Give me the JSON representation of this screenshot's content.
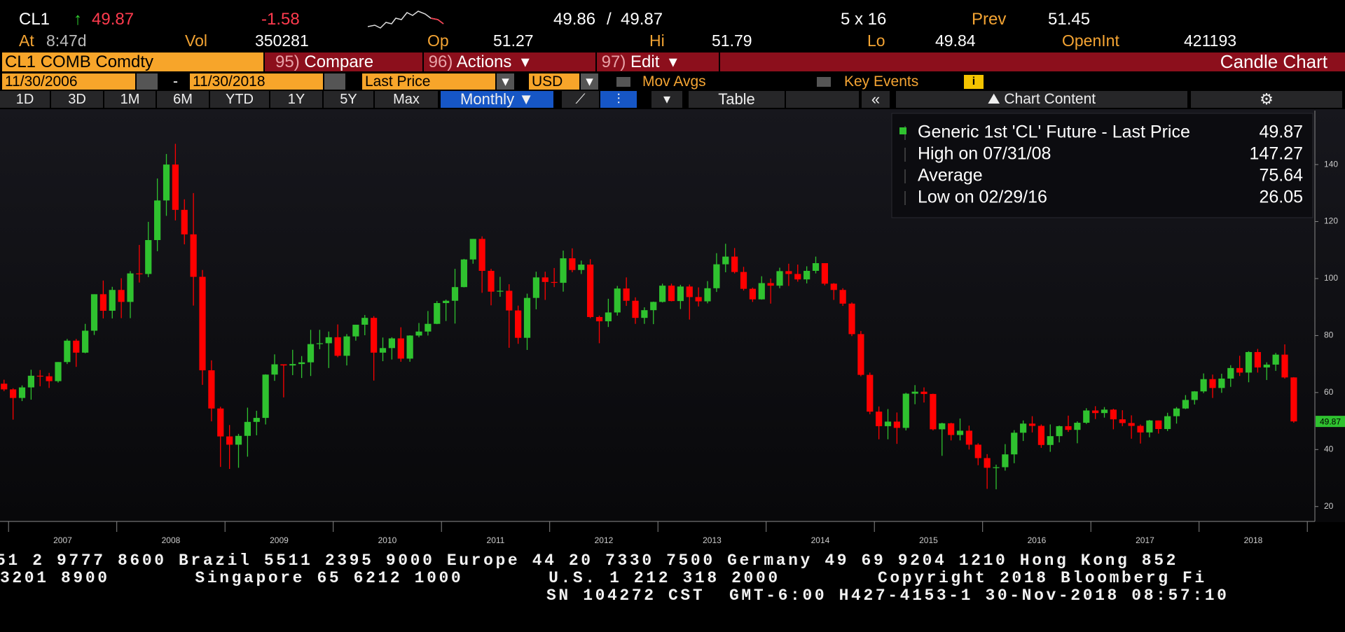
{
  "header": {
    "ticker": "CL1",
    "arrow": "↑",
    "last": "49.87",
    "change": "-1.58",
    "bid": "49.86",
    "sep": "/",
    "ask": "49.87",
    "size": "5 x 16",
    "prev_label": "Prev",
    "prev": "51.45",
    "at_label": "At",
    "time": "8:47d",
    "vol_label": "Vol",
    "vol": "350281",
    "open_label": "Op",
    "open": "51.27",
    "hi_label": "Hi",
    "hi": "51.79",
    "lo_label": "Lo",
    "lo": "49.84",
    "oi_label": "OpenInt",
    "oi": "421193"
  },
  "toolbar": {
    "security": "CL1 COMB Comdty",
    "menus": [
      {
        "num": "95)",
        "label": "Compare"
      },
      {
        "num": "96)",
        "label": "Actions"
      },
      {
        "num": "97)",
        "label": "Edit"
      }
    ],
    "view": "Candle Chart",
    "start_date": "11/30/2006",
    "dash": "-",
    "end_date": "11/30/2018",
    "field": "Last Price",
    "currency": "USD",
    "mov_avgs": "Mov Avgs",
    "key_events": "Key Events",
    "periods": [
      "1D",
      "3D",
      "1M",
      "6M",
      "YTD",
      "1Y",
      "5Y",
      "Max"
    ],
    "frequency": "Monthly",
    "table": "Table",
    "chart_content": "Chart Content"
  },
  "chart_data": {
    "type": "candlestick",
    "up_color": "#2fc22f",
    "down_color": "#ff0000",
    "legend": [
      {
        "label": "Generic 1st 'CL' Future - Last Price",
        "value": "49.87"
      },
      {
        "label": "High on 07/31/08",
        "value": "147.27"
      },
      {
        "label": "Average",
        "value": "75.64"
      },
      {
        "label": "Low on 02/29/16",
        "value": "26.05"
      }
    ],
    "x_labels": [
      "2007",
      "2008",
      "2009",
      "2010",
      "2011",
      "2012",
      "2013",
      "2014",
      "2015",
      "2016",
      "2017",
      "2018"
    ],
    "ylim": [
      15,
      158
    ],
    "yticks": [
      20,
      40,
      60,
      80,
      100,
      120,
      140
    ],
    "last_price_tag": 49.87,
    "candles": [
      [
        63.1,
        64.5,
        60.5,
        61.1
      ],
      [
        61.1,
        61.5,
        50.5,
        58.1
      ],
      [
        58.1,
        62.5,
        57,
        61.8
      ],
      [
        61.8,
        68,
        57.5,
        65.9
      ],
      [
        65.9,
        67.9,
        62.2,
        65.7
      ],
      [
        65.7,
        66.9,
        61.6,
        64.0
      ],
      [
        64.0,
        70.7,
        63.5,
        70.7
      ],
      [
        70.7,
        78.8,
        70.0,
        78.2
      ],
      [
        78.2,
        78.8,
        69.0,
        74.0
      ],
      [
        74.0,
        84.1,
        73.8,
        81.7
      ],
      [
        81.7,
        94.5,
        80.2,
        94.5
      ],
      [
        94.5,
        99.3,
        86.0,
        88.7
      ],
      [
        88.7,
        97.1,
        86.0,
        96.0
      ],
      [
        96.0,
        100.1,
        86.1,
        91.8
      ],
      [
        91.8,
        102.6,
        86.1,
        101.8
      ],
      [
        101.8,
        111.8,
        98.6,
        101.6
      ],
      [
        101.6,
        119.9,
        100.5,
        113.5
      ],
      [
        113.5,
        135.1,
        109.6,
        127.4
      ],
      [
        127.4,
        143.7,
        122.0,
        140.0
      ],
      [
        140.0,
        147.27,
        120.4,
        124.1
      ],
      [
        124.1,
        127.8,
        112.0,
        115.5
      ],
      [
        115.5,
        130.0,
        90.5,
        100.6
      ],
      [
        100.6,
        103.0,
        62.7,
        67.8
      ],
      [
        67.8,
        71.3,
        49.9,
        54.4
      ],
      [
        54.4,
        55.0,
        33.9,
        44.6
      ],
      [
        44.6,
        48.6,
        33.2,
        41.7
      ],
      [
        41.7,
        45.5,
        33.6,
        44.8
      ],
      [
        44.8,
        54.7,
        37.5,
        49.7
      ],
      [
        49.7,
        53.6,
        45.0,
        51.1
      ],
      [
        51.1,
        66.4,
        48.8,
        66.3
      ],
      [
        66.3,
        73.4,
        64.1,
        69.9
      ],
      [
        69.9,
        69.9,
        58.3,
        69.5
      ],
      [
        69.5,
        75.0,
        66.1,
        70.0
      ],
      [
        70.0,
        72.8,
        65.1,
        70.6
      ],
      [
        70.6,
        82.0,
        65.8,
        77.0
      ],
      [
        77.0,
        82.0,
        75.2,
        77.3
      ],
      [
        77.3,
        81.4,
        68.6,
        79.4
      ],
      [
        79.4,
        83.9,
        72.4,
        72.9
      ],
      [
        72.9,
        80.5,
        69.5,
        79.7
      ],
      [
        79.7,
        83.8,
        78.2,
        83.8
      ],
      [
        83.8,
        87.2,
        80.1,
        86.2
      ],
      [
        86.2,
        86.8,
        64.2,
        74.0
      ],
      [
        74.0,
        79.3,
        71.0,
        75.6
      ],
      [
        75.6,
        79.4,
        71.6,
        79.0
      ],
      [
        79.0,
        82.9,
        70.8,
        71.9
      ],
      [
        71.9,
        80.1,
        70.8,
        80.0
      ],
      [
        80.0,
        84.4,
        79.4,
        81.4
      ],
      [
        81.4,
        88.6,
        80.0,
        84.1
      ],
      [
        84.1,
        92.1,
        84.0,
        91.4
      ],
      [
        91.4,
        92.6,
        85.1,
        92.2
      ],
      [
        92.2,
        103.4,
        84.2,
        97.0
      ],
      [
        97.0,
        106.9,
        96.9,
        106.7
      ],
      [
        106.7,
        113.9,
        105.2,
        113.9
      ],
      [
        113.9,
        114.8,
        95.0,
        102.7
      ],
      [
        102.7,
        103.4,
        90.6,
        95.4
      ],
      [
        95.4,
        100.6,
        93.6,
        95.7
      ],
      [
        95.7,
        98.0,
        75.7,
        88.8
      ],
      [
        88.8,
        90.5,
        77.1,
        79.2
      ],
      [
        79.2,
        94.7,
        74.95,
        93.2
      ],
      [
        93.2,
        102.4,
        89.2,
        100.4
      ],
      [
        100.4,
        102.4,
        92.5,
        98.8
      ],
      [
        98.8,
        103.7,
        97.0,
        98.5
      ],
      [
        98.5,
        109.8,
        95.4,
        107.1
      ],
      [
        107.1,
        110.6,
        102.2,
        103.0
      ],
      [
        103.0,
        106.3,
        101.6,
        104.9
      ],
      [
        104.9,
        106.8,
        86.1,
        86.5
      ],
      [
        86.5,
        87.0,
        77.3,
        85.0
      ],
      [
        85.0,
        92.9,
        83.0,
        88.1
      ],
      [
        88.1,
        97.4,
        87.0,
        96.5
      ],
      [
        96.5,
        100.4,
        90.4,
        92.2
      ],
      [
        92.2,
        93.4,
        84.1,
        86.2
      ],
      [
        86.2,
        89.9,
        84.1,
        88.9
      ],
      [
        88.9,
        91.9,
        84.0,
        91.8
      ],
      [
        91.8,
        98.2,
        91.6,
        97.5
      ],
      [
        97.5,
        98.2,
        92.0,
        92.1
      ],
      [
        92.1,
        97.8,
        89.3,
        97.2
      ],
      [
        97.2,
        97.9,
        85.6,
        93.5
      ],
      [
        93.5,
        96.9,
        90.2,
        92.0
      ],
      [
        92.0,
        99.1,
        91.3,
        96.6
      ],
      [
        96.6,
        108.9,
        95.3,
        105.0
      ],
      [
        105.0,
        112.2,
        102.2,
        107.7
      ],
      [
        107.7,
        110.7,
        101.8,
        102.3
      ],
      [
        102.3,
        104.1,
        95.8,
        96.4
      ],
      [
        96.4,
        96.8,
        91.8,
        92.7
      ],
      [
        92.7,
        100.8,
        92.6,
        98.4
      ],
      [
        98.4,
        100.0,
        91.2,
        97.5
      ],
      [
        97.5,
        103.8,
        96.6,
        102.6
      ],
      [
        102.6,
        105.2,
        97.4,
        101.6
      ],
      [
        101.6,
        104.9,
        98.9,
        99.7
      ],
      [
        99.7,
        104.3,
        98.3,
        102.7
      ],
      [
        102.7,
        107.7,
        101.8,
        105.4
      ],
      [
        105.4,
        105.4,
        97.6,
        98.2
      ],
      [
        98.2,
        98.4,
        92.5,
        96.0
      ],
      [
        96.0,
        96.6,
        90.4,
        91.2
      ],
      [
        91.2,
        91.6,
        79.8,
        80.5
      ],
      [
        80.5,
        81.6,
        65.7,
        66.2
      ],
      [
        66.2,
        67.0,
        52.4,
        53.3
      ],
      [
        53.3,
        55.1,
        43.6,
        48.2
      ],
      [
        48.2,
        54.2,
        43.6,
        49.8
      ],
      [
        49.8,
        53.0,
        42.0,
        47.6
      ],
      [
        47.6,
        59.9,
        46.7,
        59.6
      ],
      [
        59.6,
        62.6,
        55.9,
        60.3
      ],
      [
        60.3,
        61.8,
        56.5,
        59.5
      ],
      [
        59.5,
        59.6,
        46.7,
        47.1
      ],
      [
        47.1,
        49.4,
        37.8,
        49.2
      ],
      [
        49.2,
        49.4,
        43.2,
        45.1
      ],
      [
        45.1,
        50.9,
        43.2,
        46.6
      ],
      [
        46.6,
        48.4,
        40.0,
        41.7
      ],
      [
        41.7,
        42.2,
        34.5,
        37.0
      ],
      [
        37.0,
        38.4,
        26.2,
        33.6
      ],
      [
        33.6,
        34.7,
        26.05,
        33.8
      ],
      [
        33.8,
        41.9,
        32.6,
        38.3
      ],
      [
        38.3,
        46.8,
        35.2,
        45.9
      ],
      [
        45.9,
        50.2,
        43.0,
        49.1
      ],
      [
        49.1,
        51.7,
        46.0,
        48.3
      ],
      [
        48.3,
        48.8,
        40.6,
        41.6
      ],
      [
        41.6,
        48.8,
        39.2,
        44.7
      ],
      [
        44.7,
        48.4,
        42.5,
        48.2
      ],
      [
        48.2,
        51.9,
        46.2,
        46.9
      ],
      [
        46.9,
        49.9,
        42.2,
        49.4
      ],
      [
        49.4,
        54.5,
        49.0,
        53.7
      ],
      [
        53.7,
        55.2,
        50.7,
        52.8
      ],
      [
        52.8,
        54.9,
        51.2,
        54.0
      ],
      [
        54.0,
        54.3,
        47.1,
        50.6
      ],
      [
        50.6,
        53.8,
        48.2,
        49.3
      ],
      [
        49.3,
        52.0,
        43.8,
        48.3
      ],
      [
        48.3,
        48.8,
        42.1,
        46.0
      ],
      [
        46.0,
        50.4,
        44.3,
        50.2
      ],
      [
        50.2,
        50.2,
        45.6,
        47.2
      ],
      [
        47.2,
        52.9,
        46.5,
        51.7
      ],
      [
        51.7,
        54.9,
        49.1,
        54.4
      ],
      [
        54.4,
        59.1,
        54.2,
        57.4
      ],
      [
        57.4,
        60.5,
        55.8,
        60.4
      ],
      [
        60.4,
        66.7,
        59.8,
        64.7
      ],
      [
        64.7,
        66.3,
        58.1,
        61.6
      ],
      [
        61.6,
        66.6,
        59.9,
        64.9
      ],
      [
        64.9,
        69.6,
        62.0,
        68.6
      ],
      [
        68.6,
        72.9,
        65.8,
        67.0
      ],
      [
        67.0,
        74.5,
        63.6,
        74.2
      ],
      [
        74.2,
        75.3,
        67.0,
        68.8
      ],
      [
        68.8,
        70.6,
        64.4,
        69.8
      ],
      [
        69.8,
        73.9,
        67.6,
        73.3
      ],
      [
        73.3,
        76.9,
        64.9,
        65.3
      ],
      [
        65.3,
        65.4,
        49.4,
        49.87
      ]
    ]
  },
  "footer": {
    "lines": [
      "51 2 9777 8600 Brazil 5511 2395 9000 Europe 44 20 7330 7500 Germany 49 69 9204 1210 Hong Kong 852",
      "3201 8900       Singapore 65 6212 1000       U.S. 1 212 318 2000        Copyright 2018 Bloomberg Fi",
      "SN 104272 CST  GMT-6:00 H427-4153-1 30-Nov-2018 08:57:10"
    ]
  }
}
